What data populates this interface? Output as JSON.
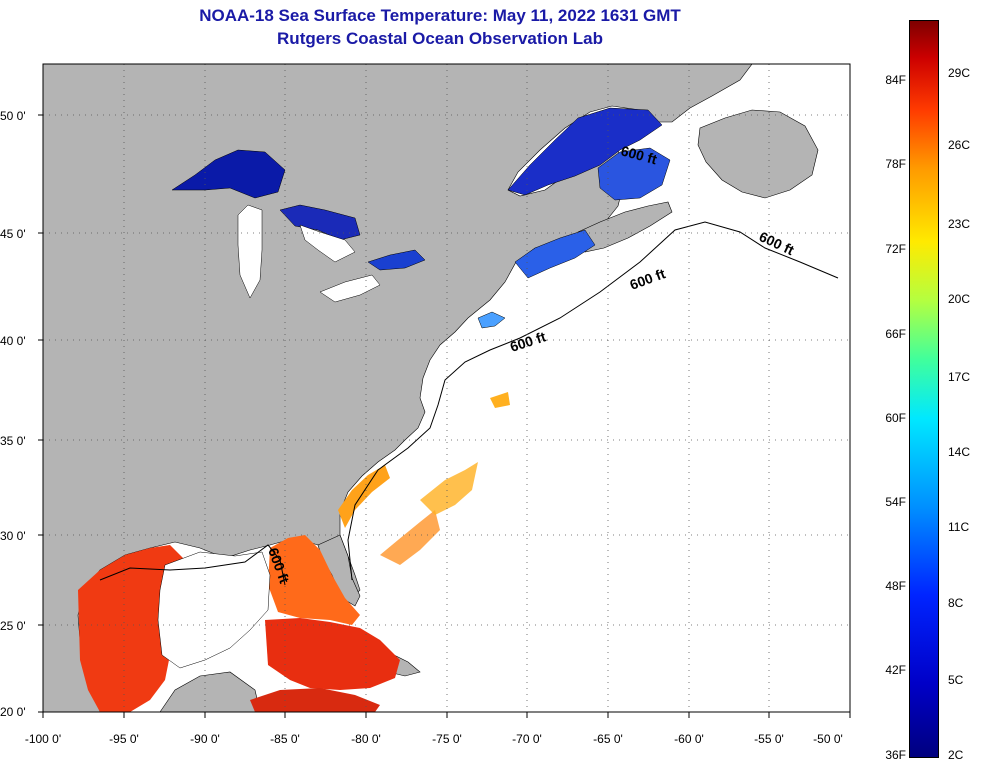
{
  "title": {
    "line1": "NOAA-18 Sea Surface Temperature:  May 11, 2022 1631 GMT",
    "line2": "Rutgers Coastal Ocean Observation Lab"
  },
  "axes": {
    "lat_labels": [
      "50 0'",
      "45 0'",
      "40 0'",
      "35 0'",
      "30 0'",
      "25 0'",
      "20 0'"
    ],
    "lon_labels": [
      "-100 0'",
      "-95 0'",
      "-90 0'",
      "-85 0'",
      "-80 0'",
      "-75 0'",
      "-70 0'",
      "-65 0'",
      "-60 0'",
      "-55 0'",
      "-50 0'"
    ]
  },
  "isobath": {
    "label": "600 ft"
  },
  "colorbar": {
    "fahrenheit": [
      "84F",
      "78F",
      "72F",
      "66F",
      "60F",
      "54F",
      "48F",
      "42F",
      "36F"
    ],
    "celsius": [
      "29C",
      "26C",
      "23C",
      "20C",
      "17C",
      "14C",
      "11C",
      "8C",
      "5C",
      "2C"
    ]
  },
  "colors": {
    "title": "#1a1aa6",
    "land": "#b4b4b4",
    "ocean": "#ffffff"
  }
}
